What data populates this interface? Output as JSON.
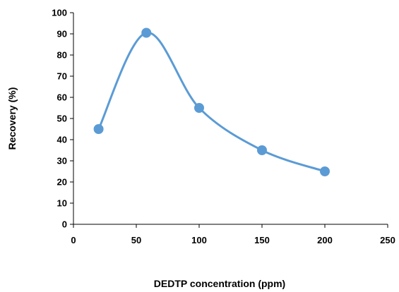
{
  "chart_data": {
    "type": "line",
    "xlabel": "DEDTP concentration (ppm)",
    "ylabel": "Recovery (%)",
    "xlim": [
      0,
      250
    ],
    "ylim": [
      0,
      100
    ],
    "xticks": [
      0,
      50,
      100,
      150,
      200,
      250
    ],
    "yticks": [
      0,
      10,
      20,
      30,
      40,
      50,
      60,
      70,
      80,
      90,
      100
    ],
    "grid": false,
    "legend": "none",
    "smooth": true,
    "marker": "circle",
    "color": "#5b9bd5",
    "series": [
      {
        "x": [
          20,
          58,
          100,
          150,
          200
        ],
        "y": [
          45,
          90.5,
          55,
          35,
          25
        ]
      }
    ]
  }
}
